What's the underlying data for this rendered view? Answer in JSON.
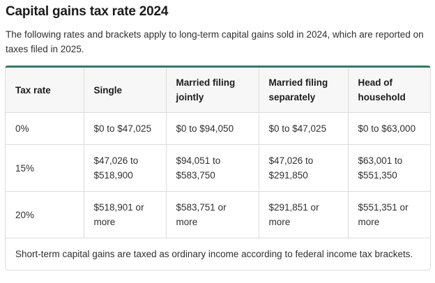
{
  "page": {
    "title": "Capital gains tax rate 2024",
    "intro": "The following rates and brackets apply to long-term capital gains sold in 2024, which are reported on taxes filed in 2025."
  },
  "colors": {
    "accent_green": "#2a7c64",
    "border_gray": "#dcdcdc",
    "header_bg": "#f7f7f7",
    "text": "#2f2f2f"
  },
  "table": {
    "columns": [
      "Tax rate",
      "Single",
      "Married filing jointly",
      "Married filing separately",
      "Head of household"
    ],
    "rows": [
      {
        "cells": [
          "0%",
          "$0 to $47,025",
          "$0 to $94,050",
          "$0 to $47,025",
          "$0 to $63,000"
        ]
      },
      {
        "cells": [
          "15%",
          "$47,026 to $518,900",
          "$94,051 to $583,750",
          "$47,026 to $291,850",
          "$63,001 to $551,350"
        ]
      },
      {
        "cells": [
          "20%",
          "$518,901 or more",
          "$583,751 or more",
          "$291,851 or more",
          "$551,351 or more"
        ]
      }
    ],
    "footnote": "Short-term capital gains are taxed as ordinary income according to federal income tax brackets."
  }
}
